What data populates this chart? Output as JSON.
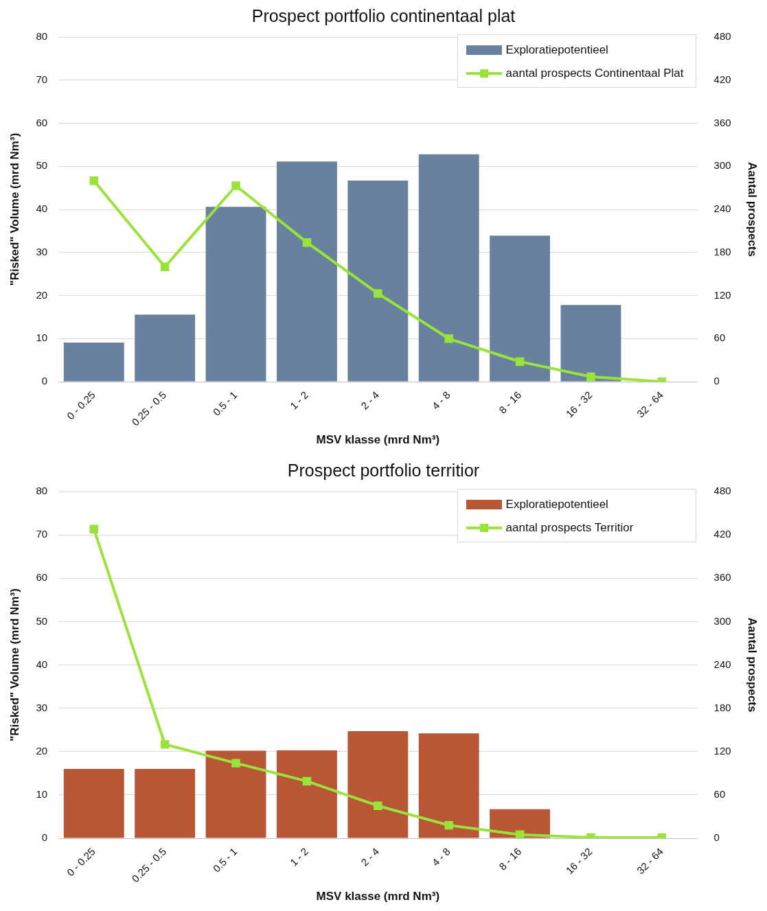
{
  "chart_data": [
    {
      "type": "bar",
      "title": "Prospect portfolio continentaal plat",
      "xlabel": "MSV klasse (mrd Nm³)",
      "ylabel": "\"Risked\" Volume (mrd Nm³)",
      "y2label": "Aantal prospects",
      "categories": [
        "0 - 0.25",
        "0.25 - 0.5",
        "0.5 - 1",
        "1 - 2",
        "2 - 4",
        "4 - 8",
        "8 - 16",
        "16 - 32",
        "32 - 64"
      ],
      "series": [
        {
          "name": "Exploratiepotentieel",
          "color": "#68819e",
          "values": [
            9.1,
            15.6,
            40.6,
            51.1,
            46.7,
            52.8,
            33.9,
            17.8,
            0
          ]
        },
        {
          "name": "aantal prospects Continentaal Plat",
          "type": "line",
          "axis": "y2",
          "color": "#99e33a",
          "values": [
            280,
            160,
            273,
            194,
            123,
            60,
            28,
            7,
            0
          ]
        }
      ],
      "ylim": [
        0,
        80
      ],
      "yticks": [
        0,
        10,
        20,
        30,
        40,
        50,
        60,
        70,
        80
      ],
      "y2lim": [
        0,
        480
      ],
      "y2ticks": [
        0,
        60,
        120,
        180,
        240,
        300,
        360,
        420,
        480
      ],
      "grid": "y",
      "legend": "top right",
      "marker": "square"
    },
    {
      "type": "bar",
      "title": "Prospect portfolio territior",
      "xlabel": "MSV klasse (mrd Nm³)",
      "ylabel": "\"Risked\" Volume (mrd Nm³)",
      "y2label": "Aantal prospects",
      "categories": [
        "0 - 0.25",
        "0.25 - 0.5",
        "0.5 - 1",
        "1 - 2",
        "2 - 4",
        "4 - 8",
        "8 - 16",
        "16 - 32",
        "32 - 64"
      ],
      "series": [
        {
          "name": "Exploratiepotentieel",
          "color": "#b85636",
          "values": [
            16,
            16,
            20.2,
            20.3,
            24.7,
            24.2,
            6.7,
            0,
            0
          ]
        },
        {
          "name": "aantal prospects Territior",
          "type": "line",
          "axis": "y2",
          "color": "#99e33a",
          "values": [
            428,
            130,
            104,
            79,
            45,
            18,
            5,
            1,
            1
          ]
        }
      ],
      "ylim": [
        0,
        80
      ],
      "yticks": [
        0,
        10,
        20,
        30,
        40,
        50,
        60,
        70,
        80
      ],
      "y2lim": [
        0,
        480
      ],
      "y2ticks": [
        0,
        60,
        120,
        180,
        240,
        300,
        360,
        420,
        480
      ],
      "grid": "y",
      "legend": "top right",
      "marker": "square"
    }
  ]
}
